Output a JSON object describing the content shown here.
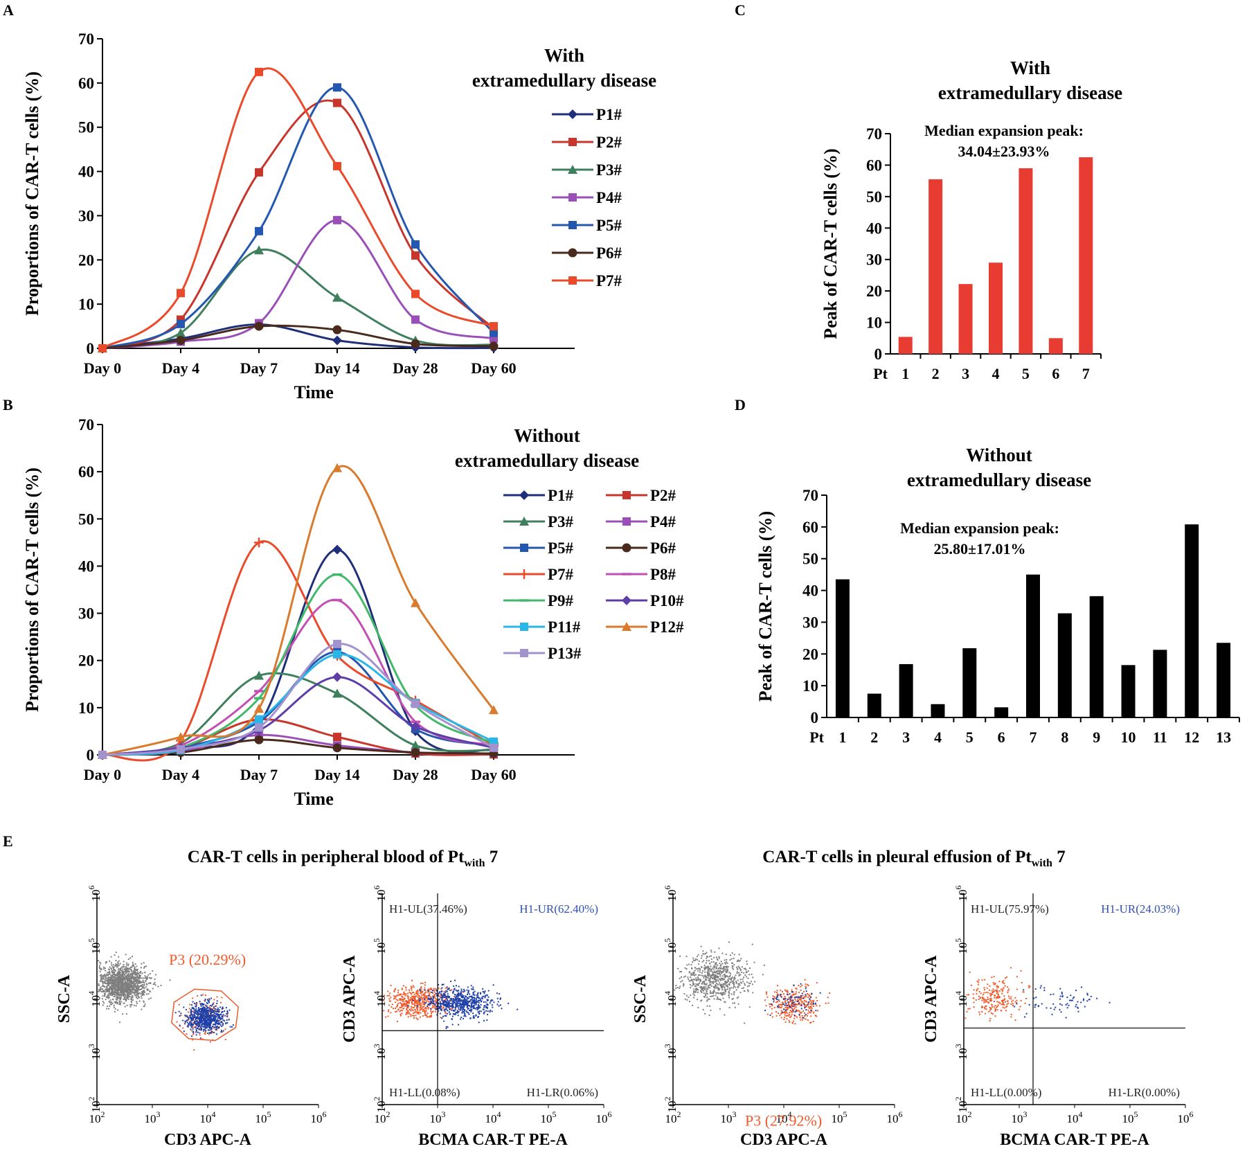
{
  "panel_labels": [
    "A",
    "B",
    "C",
    "D",
    "E"
  ],
  "chart_data": [
    {
      "id": "A",
      "type": "line",
      "title": "With extramedullary disease",
      "title_lines": [
        "With",
        "extramedullary disease"
      ],
      "xlabel": "Time",
      "ylabel": "Proportions of CAR-T cells (%)",
      "categories": [
        "Day 0",
        "Day 4",
        "Day 7",
        "Day 14",
        "Day 28",
        "Day 60"
      ],
      "ylim": [
        0,
        70
      ],
      "yticks": [
        0,
        10,
        20,
        30,
        40,
        50,
        60,
        70
      ],
      "legend_position": "right",
      "series": [
        {
          "name": "P1#",
          "color": "#1f2f7a",
          "marker": "diamond",
          "values": [
            0,
            2.2,
            5.4,
            1.8,
            0.2,
            0.1
          ]
        },
        {
          "name": "P2#",
          "color": "#c8352b",
          "marker": "square",
          "values": [
            0,
            6.5,
            39.8,
            55.5,
            21,
            4.5
          ]
        },
        {
          "name": "P3#",
          "color": "#3e7f5e",
          "marker": "triangle",
          "values": [
            0,
            3.5,
            22.2,
            11.5,
            1.8,
            0.8
          ]
        },
        {
          "name": "P4#",
          "color": "#9a4fb8",
          "marker": "square",
          "values": [
            0,
            1.5,
            5.7,
            29,
            6.5,
            2.2
          ]
        },
        {
          "name": "P5#",
          "color": "#2457b0",
          "marker": "square",
          "values": [
            0,
            5.5,
            26.5,
            59,
            23.5,
            3.5
          ]
        },
        {
          "name": "P6#",
          "color": "#4a2a1c",
          "marker": "circle",
          "values": [
            0,
            1.8,
            5,
            4.2,
            1,
            0.5
          ]
        },
        {
          "name": "P7#",
          "color": "#ea4a2a",
          "marker": "square",
          "values": [
            0,
            12.5,
            62.5,
            41.2,
            12.3,
            5
          ]
        }
      ]
    },
    {
      "id": "B",
      "type": "line",
      "title": "Without extramedullary disease",
      "title_lines": [
        "Without",
        "extramedullary disease"
      ],
      "xlabel": "Time",
      "ylabel": "Proportions of CAR-T cells (%)",
      "categories": [
        "Day 0",
        "Day 4",
        "Day 7",
        "Day 14",
        "Day 28",
        "Day 60"
      ],
      "ylim": [
        0,
        70
      ],
      "yticks": [
        0,
        10,
        20,
        30,
        40,
        50,
        60,
        70
      ],
      "legend_position": "right",
      "series": [
        {
          "name": "P1#",
          "color": "#1f2f7a",
          "marker": "diamond",
          "values": [
            0,
            1.5,
            6.5,
            43.5,
            5,
            1
          ]
        },
        {
          "name": "P2#",
          "color": "#c8352b",
          "marker": "square",
          "values": [
            0,
            1.5,
            7.5,
            3.8,
            0.3,
            0.1
          ]
        },
        {
          "name": "P3#",
          "color": "#3e7f5e",
          "marker": "triangle",
          "values": [
            0,
            2.5,
            16.8,
            13,
            2,
            1
          ]
        },
        {
          "name": "P4#",
          "color": "#9a4fb8",
          "marker": "square",
          "values": [
            0,
            0.8,
            4.2,
            2,
            0.5,
            0.3
          ]
        },
        {
          "name": "P5#",
          "color": "#2457b0",
          "marker": "square",
          "values": [
            0,
            1.5,
            7,
            21.8,
            5.5,
            2
          ]
        },
        {
          "name": "P6#",
          "color": "#4a2a1c",
          "marker": "circle",
          "values": [
            0,
            0.5,
            3.2,
            1.5,
            0.5,
            0.3
          ]
        },
        {
          "name": "P7#",
          "color": "#ea4a2a",
          "marker": "plus",
          "values": [
            0,
            3,
            45,
            21,
            11.5,
            2
          ]
        },
        {
          "name": "P8#",
          "color": "#c34fb4",
          "marker": "dash",
          "values": [
            0,
            2,
            13.5,
            32.8,
            7,
            2
          ]
        },
        {
          "name": "P9#",
          "color": "#41b86a",
          "marker": "dash",
          "values": [
            0,
            1.5,
            12,
            38.2,
            10.5,
            2.5
          ]
        },
        {
          "name": "P10#",
          "color": "#5d3ea8",
          "marker": "diamond",
          "values": [
            0,
            1.5,
            5.2,
            16.5,
            6,
            1.5
          ]
        },
        {
          "name": "P11#",
          "color": "#29b6e8",
          "marker": "square",
          "values": [
            0,
            1,
            7.5,
            21.3,
            11,
            2.8
          ]
        },
        {
          "name": "P12#",
          "color": "#d97a2c",
          "marker": "triangle",
          "values": [
            0,
            3.8,
            9.8,
            60.8,
            32.2,
            9.5
          ]
        },
        {
          "name": "P13#",
          "color": "#a293cf",
          "marker": "square",
          "values": [
            0,
            1.2,
            5.8,
            23.5,
            10.8,
            1.5
          ]
        }
      ]
    },
    {
      "id": "C",
      "type": "bar",
      "title": "With extramedullary disease",
      "title_lines": [
        "With",
        "extramedullary disease"
      ],
      "ylabel": "Peak of CAR-T cells (%)",
      "xprefix": "Pt",
      "categories": [
        "1",
        "2",
        "3",
        "4",
        "5",
        "6",
        "7"
      ],
      "values": [
        5.4,
        55.5,
        22.2,
        29,
        59,
        5,
        62.5
      ],
      "ylim": [
        0,
        70
      ],
      "yticks": [
        0,
        10,
        20,
        30,
        40,
        50,
        60,
        70
      ],
      "color": "#e83c33",
      "annotation": [
        "Median expansion peak:",
        "34.04±23.93%"
      ]
    },
    {
      "id": "D",
      "type": "bar",
      "title": "Without extramedullary disease",
      "title_lines": [
        "Without",
        "extramedullary disease"
      ],
      "ylabel": "Peak of CAR-T cells (%)",
      "xprefix": "Pt",
      "categories": [
        "1",
        "2",
        "3",
        "4",
        "5",
        "6",
        "7",
        "8",
        "9",
        "10",
        "11",
        "12",
        "13"
      ],
      "values": [
        43.5,
        7.5,
        16.8,
        4.2,
        21.8,
        3.2,
        45,
        32.8,
        38.2,
        16.5,
        21.3,
        60.8,
        23.5
      ],
      "ylim": [
        0,
        70
      ],
      "yticks": [
        0,
        10,
        20,
        30,
        40,
        50,
        60,
        70
      ],
      "color": "#000000",
      "annotation": [
        "Median expansion peak:",
        "25.80±17.01%"
      ]
    }
  ],
  "flow": {
    "header_blood": {
      "pre": "CAR-T cells in peripheral blood of Pt",
      "sub": "with",
      "post": " 7"
    },
    "header_pleural": {
      "pre": "CAR-T cells in pleural effusion of Pt",
      "sub": "with",
      "post": " 7"
    },
    "plots": [
      {
        "id": "E1",
        "type": "scatter",
        "xlabel": "CD3 APC-A",
        "ylabel": "SSC-A",
        "gate": "P3 (20.29%)"
      },
      {
        "id": "E2",
        "type": "scatter",
        "xlabel": "BCMA CAR-T PE-A",
        "ylabel": "CD3 APC-A",
        "ul": "H1-UL(37.46%)",
        "ur": "H1-UR(62.40%)",
        "ll": "H1-LL(0.08%)",
        "lr": "H1-LR(0.06%)"
      },
      {
        "id": "E3",
        "type": "scatter",
        "xlabel": "CD3 APC-A",
        "ylabel": "SSC-A",
        "gate": "P3 (27.92%)"
      },
      {
        "id": "E4",
        "type": "scatter",
        "xlabel": "BCMA CAR-T PE-A",
        "ylabel": "CD3 APC-A",
        "ul": "H1-UL(75.97%)",
        "ur": "H1-UR(24.03%)",
        "ll": "H1-LL(0.00%)",
        "lr": "H1-LR(0.00%)"
      }
    ],
    "log_ticks": [
      "2",
      "3",
      "4",
      "5",
      "6"
    ],
    "colors": {
      "gray": "#7f7f7f",
      "orange": "#ef5a2a",
      "blue": "#1e3fa8",
      "gate": "#ef5a2a"
    }
  }
}
